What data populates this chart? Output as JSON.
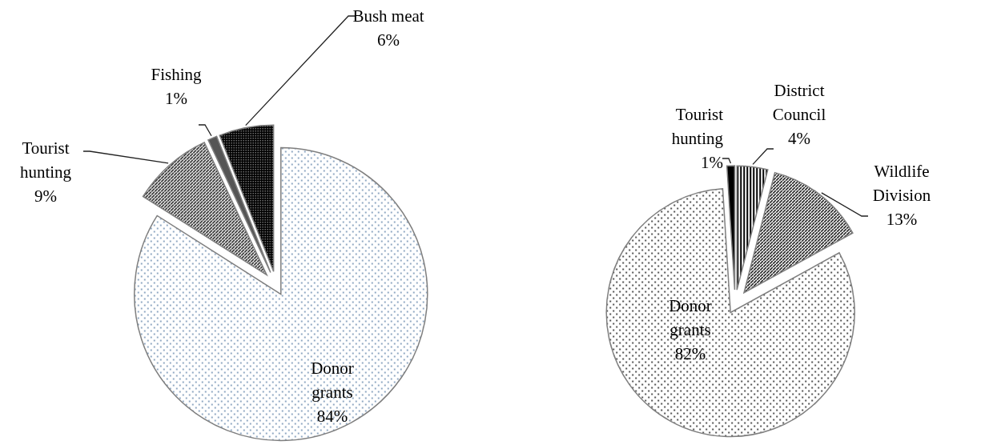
{
  "chart_data": [
    {
      "type": "pie",
      "categories": [
        "Donor\ngrants",
        "Tourist\nhunting",
        "Fishing",
        "Bush meat"
      ],
      "values": [
        84,
        9,
        1,
        6
      ],
      "value_labels": [
        "84%",
        "9%",
        "1%",
        "6%"
      ],
      "colors": [
        "#5b7fa6",
        "#000000",
        "#555555",
        "#000000"
      ]
    },
    {
      "type": "pie",
      "categories": [
        "District\nCouncil",
        "Wildlife\nDivision",
        "Donor\ngrants",
        "Tourist\nhunting"
      ],
      "values": [
        4,
        13,
        82,
        1
      ],
      "value_labels": [
        "4%",
        "13%",
        "82%",
        "1%"
      ],
      "colors": [
        "#000000",
        "#000000",
        "#000000",
        "#000000"
      ]
    }
  ]
}
